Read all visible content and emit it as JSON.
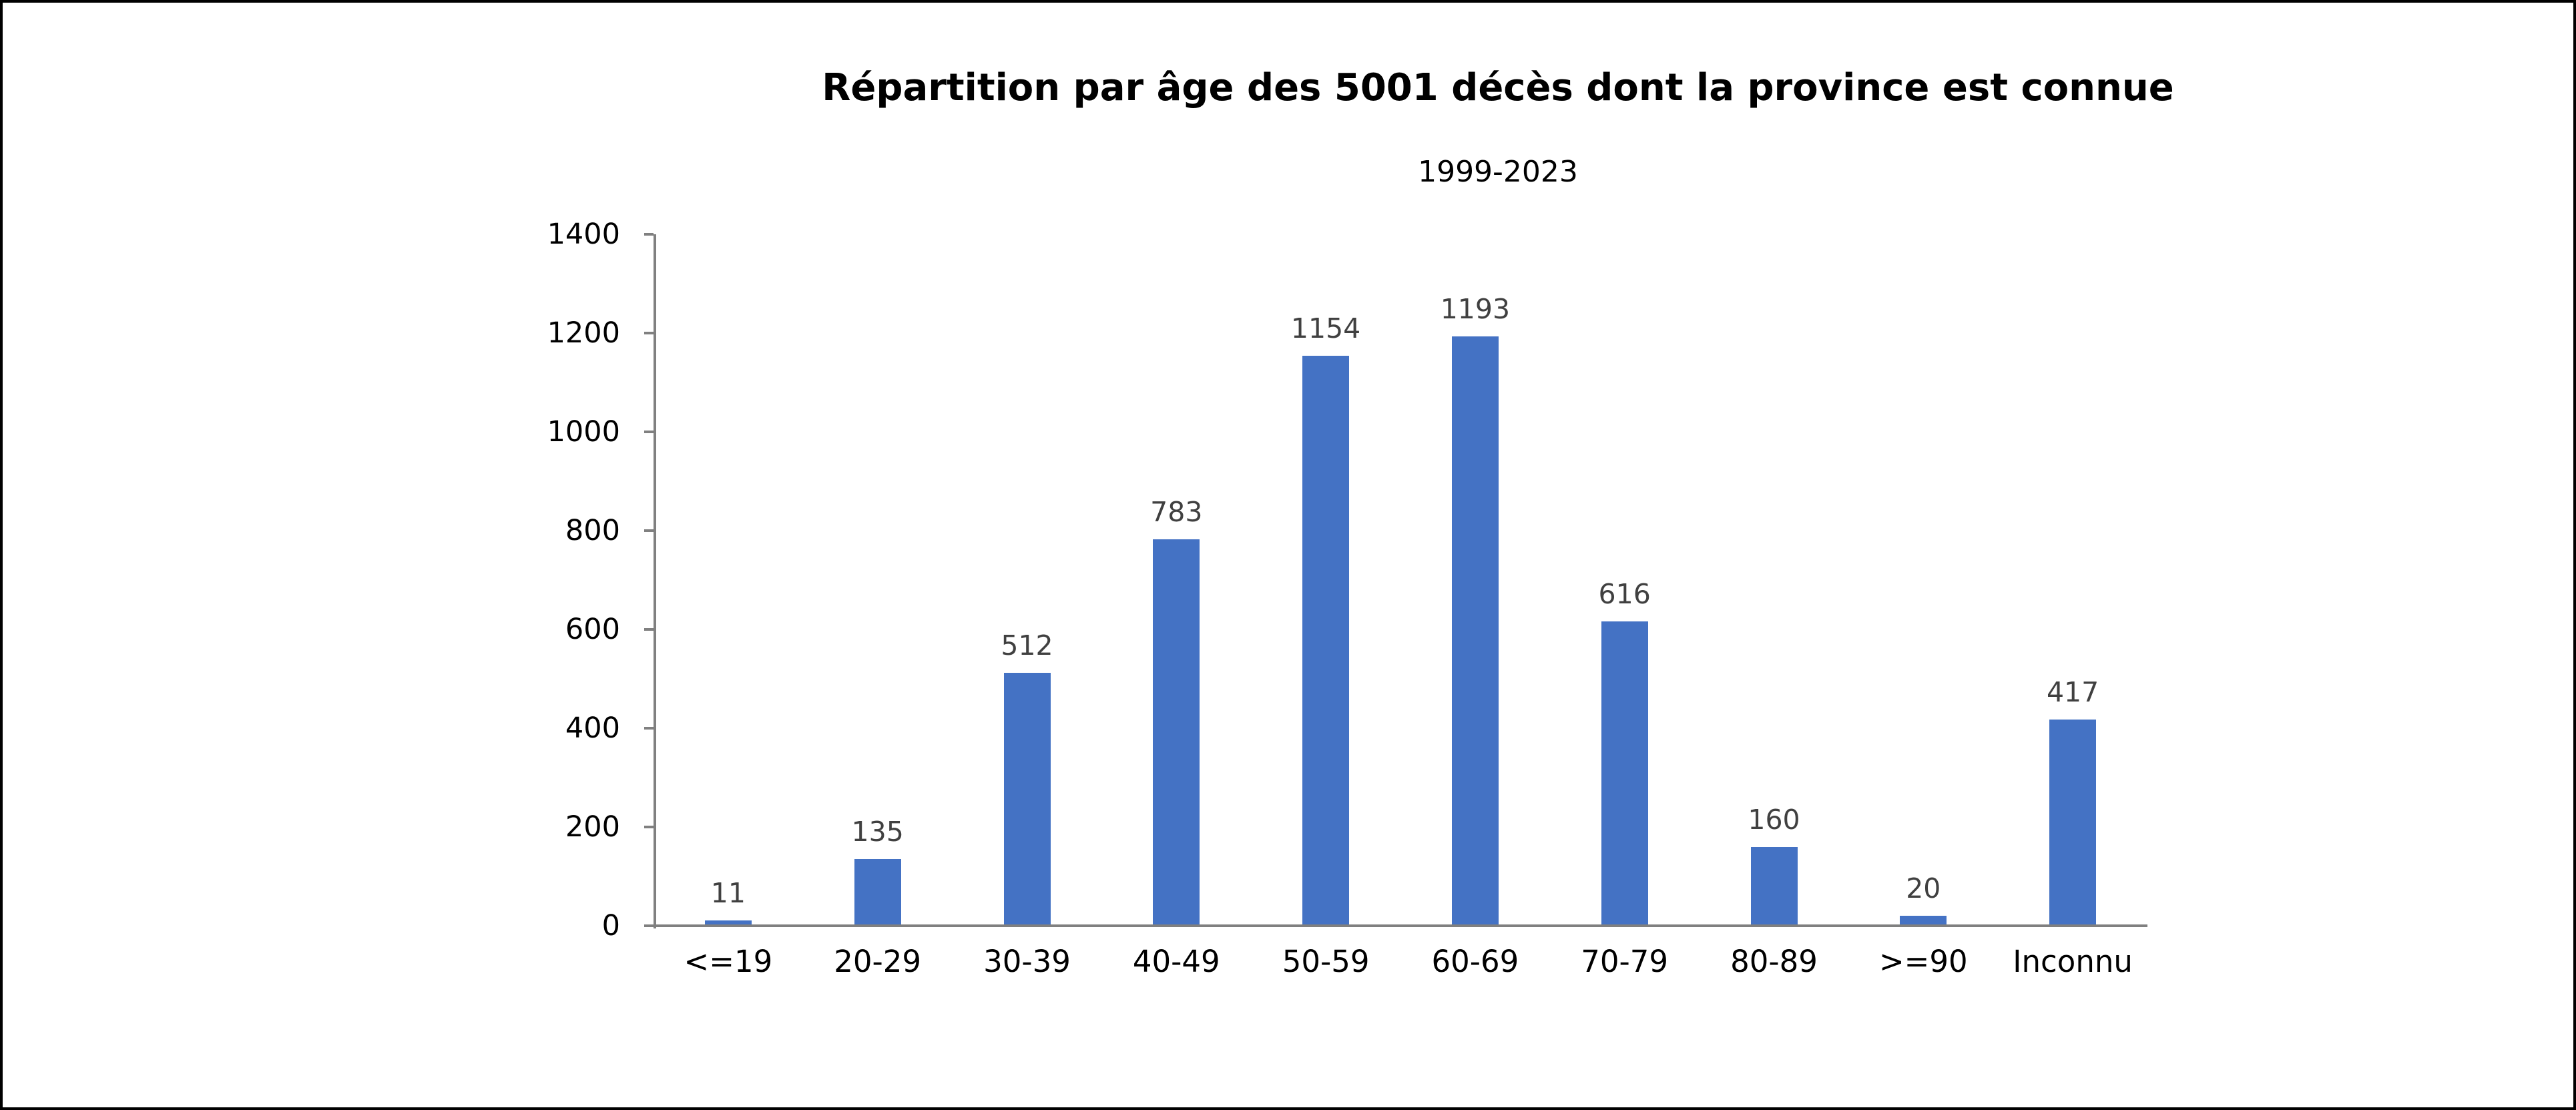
{
  "chart_data": {
    "type": "bar",
    "title": "Répartition par âge des 5001 décès dont la province est connue",
    "subtitle": "1999-2023",
    "categories": [
      "<=19",
      "20-29",
      "30-39",
      "40-49",
      "50-59",
      "60-69",
      "70-79",
      "80-89",
      ">=90",
      "Inconnu"
    ],
    "values": [
      11,
      135,
      512,
      783,
      1154,
      1193,
      616,
      160,
      20,
      417
    ],
    "xlabel": "",
    "ylabel": "",
    "ylim": [
      0,
      1400
    ],
    "yticks": [
      0,
      200,
      400,
      600,
      800,
      1000,
      1200,
      1400
    ],
    "grid": false,
    "legend": "none",
    "colors": {
      "bar": "#4472C4",
      "data_label": "#404040",
      "axis_line": "#808080",
      "tick_label": "#000000",
      "category_label": "#000000",
      "title": "#000000",
      "background": "#FFFFFF",
      "frame_border": "#000000"
    }
  }
}
